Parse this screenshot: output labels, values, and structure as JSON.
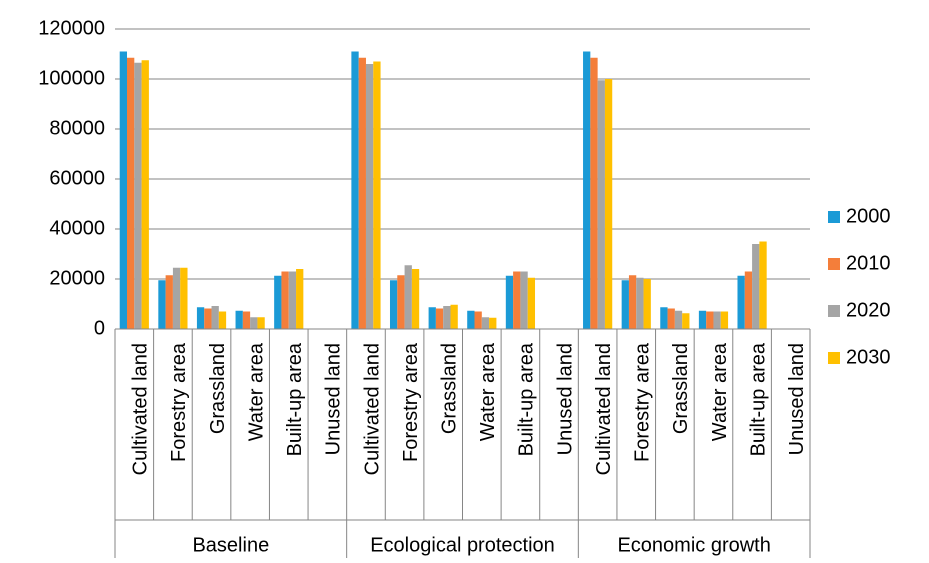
{
  "chart_data": {
    "type": "bar",
    "categories": [
      "Cultivated land",
      "Forestry area",
      "Grassland",
      "Water area",
      "Built-up area",
      "Unused land",
      "Cultivated land",
      "Forestry area",
      "Grassland",
      "Water area",
      "Built-up area",
      "Unused land",
      "Cultivated land",
      "Forestry area",
      "Grassland",
      "Water area",
      "Built-up area",
      "Unused land"
    ],
    "groups": [
      "Baseline",
      "Ecological protection",
      "Economic growth"
    ],
    "series": [
      {
        "name": "2000",
        "color": "#1b9ad6",
        "values": [
          111000,
          19500,
          8700,
          7300,
          21300,
          0,
          111000,
          19500,
          8700,
          7300,
          21300,
          0,
          111000,
          19500,
          8700,
          7300,
          21300,
          0
        ]
      },
      {
        "name": "2010",
        "color": "#f47e3a",
        "values": [
          108500,
          21500,
          8200,
          7000,
          23000,
          0,
          108500,
          21500,
          8200,
          7000,
          23000,
          0,
          108500,
          21500,
          8200,
          7000,
          23000,
          0
        ]
      },
      {
        "name": "2020",
        "color": "#a5a5a5",
        "values": [
          106500,
          24500,
          9200,
          4700,
          23000,
          0,
          106000,
          25500,
          9200,
          4700,
          23000,
          0,
          99500,
          20500,
          7300,
          7000,
          34000,
          0
        ]
      },
      {
        "name": "2030",
        "color": "#ffc000",
        "values": [
          107500,
          24500,
          7000,
          4700,
          24000,
          0,
          107000,
          24000,
          9700,
          4500,
          20500,
          0,
          100000,
          20000,
          6300,
          7000,
          35000,
          0
        ]
      }
    ],
    "ylim": [
      0,
      120000
    ],
    "yticks": [
      0,
      20000,
      40000,
      60000,
      80000,
      100000,
      120000
    ],
    "grid": true,
    "legend": "right"
  }
}
